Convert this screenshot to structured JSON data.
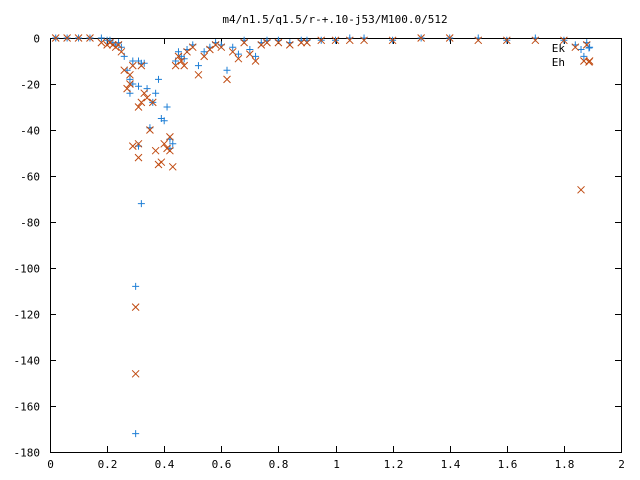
{
  "chart_data": {
    "type": "scatter",
    "title": "m4/n1.5/q1.5/r-+.10-j53/M100.0/512",
    "xlabel": "",
    "ylabel": "",
    "xlim": [
      0,
      2
    ],
    "ylim": [
      -180,
      0
    ],
    "x_ticks": [
      "0",
      "0.2",
      "0.4",
      "0.6",
      "0.8",
      "1",
      "1.2",
      "1.4",
      "1.6",
      "1.8",
      "2"
    ],
    "y_ticks": [
      "0",
      "-20",
      "-40",
      "-60",
      "-80",
      "-100",
      "-120",
      "-140",
      "-160",
      "-180"
    ],
    "grid": false,
    "legend_position": "top-right",
    "series": [
      {
        "name": "Ek",
        "marker": "+",
        "color": "#1f7fd6",
        "x": [
          0.02,
          0.06,
          0.1,
          0.14,
          0.18,
          0.2,
          0.21,
          0.22,
          0.23,
          0.24,
          0.25,
          0.26,
          0.27,
          0.28,
          0.28,
          0.29,
          0.29,
          0.3,
          0.3,
          0.31,
          0.31,
          0.31,
          0.32,
          0.32,
          0.33,
          0.34,
          0.35,
          0.36,
          0.37,
          0.38,
          0.39,
          0.4,
          0.41,
          0.42,
          0.42,
          0.43,
          0.44,
          0.45,
          0.46,
          0.47,
          0.48,
          0.5,
          0.52,
          0.54,
          0.56,
          0.58,
          0.6,
          0.62,
          0.64,
          0.66,
          0.68,
          0.7,
          0.72,
          0.74,
          0.76,
          0.8,
          0.84,
          0.88,
          0.9,
          0.95,
          1.0,
          1.05,
          1.1,
          1.2,
          1.3,
          1.4,
          1.5,
          1.6,
          1.7,
          1.8,
          1.84,
          1.86,
          1.87,
          1.88,
          1.89
        ],
        "y": [
          0,
          0,
          0,
          0,
          0,
          -1,
          -1,
          -2,
          -3,
          -2,
          -4,
          -8,
          -14,
          -18,
          -24,
          -10,
          -20,
          -172,
          -108,
          -47,
          -21,
          -10,
          -72,
          -11,
          -11,
          -22,
          -39,
          -28,
          -24,
          -18,
          -35,
          -36,
          -30,
          -48,
          -44,
          -46,
          -10,
          -6,
          -8,
          -9,
          -5,
          -3,
          -12,
          -6,
          -4,
          -2,
          -3,
          -14,
          -4,
          -7,
          -1,
          -5,
          -8,
          -2,
          -1,
          -1,
          -2,
          -1,
          -1,
          -1,
          -1,
          0,
          0,
          -1,
          0,
          0,
          0,
          -1,
          0,
          -1,
          -3,
          -5,
          -8,
          -2,
          -4
        ]
      },
      {
        "name": "Eh",
        "marker": "x",
        "color": "#c04a10",
        "x": [
          0.02,
          0.06,
          0.1,
          0.14,
          0.18,
          0.2,
          0.21,
          0.22,
          0.23,
          0.24,
          0.25,
          0.26,
          0.27,
          0.28,
          0.28,
          0.29,
          0.29,
          0.3,
          0.3,
          0.31,
          0.31,
          0.31,
          0.32,
          0.32,
          0.33,
          0.34,
          0.35,
          0.36,
          0.37,
          0.38,
          0.39,
          0.4,
          0.41,
          0.42,
          0.42,
          0.43,
          0.44,
          0.45,
          0.46,
          0.47,
          0.48,
          0.5,
          0.52,
          0.54,
          0.56,
          0.58,
          0.6,
          0.62,
          0.64,
          0.66,
          0.68,
          0.7,
          0.72,
          0.74,
          0.76,
          0.8,
          0.84,
          0.88,
          0.9,
          0.95,
          1.0,
          1.05,
          1.1,
          1.2,
          1.3,
          1.4,
          1.5,
          1.6,
          1.7,
          1.8,
          1.84,
          1.86,
          1.87,
          1.88,
          1.89
        ],
        "y": [
          0,
          0,
          0,
          0,
          -2,
          -3,
          -2,
          -3,
          -4,
          -3,
          -6,
          -14,
          -22,
          -20,
          -16,
          -12,
          -47,
          -146,
          -117,
          -46,
          -52,
          -30,
          -28,
          -12,
          -24,
          -26,
          -40,
          -28,
          -49,
          -55,
          -54,
          -46,
          -48,
          -49,
          -43,
          -56,
          -12,
          -8,
          -10,
          -12,
          -6,
          -4,
          -16,
          -8,
          -5,
          -3,
          -4,
          -18,
          -6,
          -9,
          -2,
          -7,
          -10,
          -3,
          -2,
          -2,
          -3,
          -2,
          -2,
          -1,
          -1,
          -1,
          -1,
          -1,
          0,
          0,
          -1,
          -1,
          -1,
          -1,
          -4,
          -66,
          -10,
          -3,
          -10
        ]
      }
    ]
  }
}
